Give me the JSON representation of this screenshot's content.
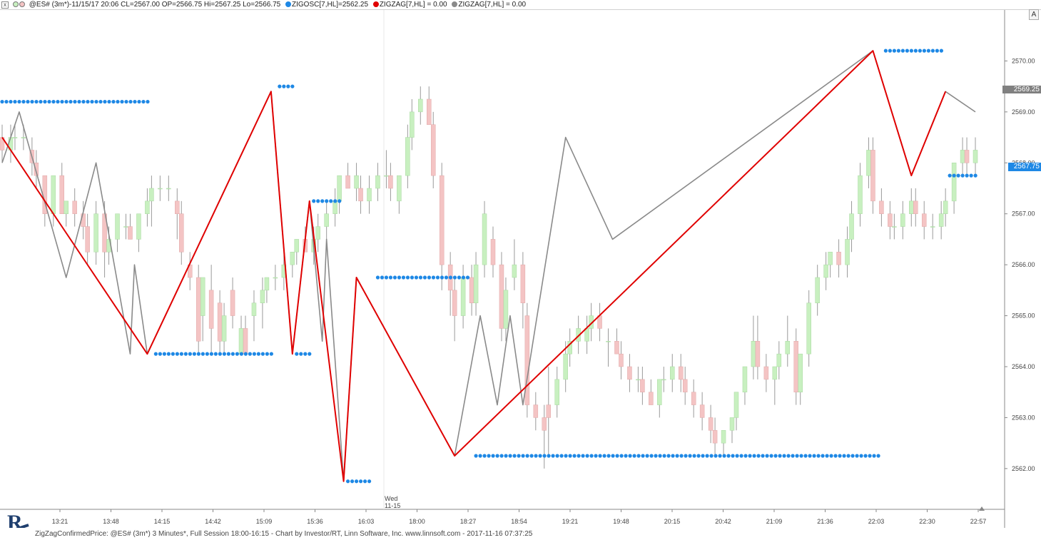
{
  "header": {
    "close_glyph": "x",
    "series_label": "@ES# (3m*)-11/15/17 20:06 CL=2567.00 OP=2566.75 Hi=2567.25 Lo=2566.75",
    "ind1_label": "ZIGOSC[7,HL]=2562.25",
    "ind2_label": "ZIGZAG[7,HL] = 0.00",
    "ind3_label": "ZIGZAG[7,HL] = 0.00",
    "a_button": "A"
  },
  "colors": {
    "up_candle": "#c8f0c0",
    "down_candle": "#f4c4c4",
    "wick": "#9a9a9a",
    "zigzag_red": "#e00000",
    "zigzag_gray": "#8a8a8a",
    "dots_blue": "#1e88e5",
    "axis_text": "#444444"
  },
  "price_badges": {
    "last_close": "2569.25",
    "zigosc_level": "2567.75"
  },
  "footer": {
    "text": "ZigZagConfirmedPrice: @ES# (3m*) 3 Minutes*, Full Session 18:00-16:15 - Chart by Investor/RT, Linn Software, Inc. www.linnsoft.com - 2017-11-16 07:37:25",
    "logo_letter": "R"
  },
  "chart_data": {
    "type": "candlestick",
    "symbol": "@ES#",
    "interval": "3 Minutes",
    "ylim": [
      2561.2,
      2571.0
    ],
    "y_ticks": [
      "2562.00",
      "2563.00",
      "2564.00",
      "2565.00",
      "2566.00",
      "2567.00",
      "2568.00",
      "2569.00",
      "2570.00"
    ],
    "x_ticks": [
      "13:21",
      "13:48",
      "14:15",
      "14:42",
      "15:09",
      "15:36",
      "16:03",
      "18:00",
      "18:27",
      "18:54",
      "19:21",
      "19:48",
      "20:15",
      "20:42",
      "21:09",
      "21:36",
      "22:03",
      "22:30",
      "22:57"
    ],
    "session_break_label": [
      "Wed",
      "11-15"
    ],
    "bar_count": 151,
    "candles_ohlc": [
      [
        2568.5,
        2568.75,
        2568.0,
        2568.25
      ],
      [
        2568.25,
        2568.75,
        2568.0,
        2568.5
      ],
      [
        2568.5,
        2568.75,
        2568.25,
        2568.5
      ],
      [
        2568.5,
        2568.75,
        2568.25,
        2568.5
      ],
      [
        2568.25,
        2568.5,
        2567.75,
        2568.0
      ],
      [
        2568.0,
        2568.25,
        2567.5,
        2567.75
      ],
      [
        2567.75,
        2567.75,
        2566.75,
        2567.0
      ],
      [
        2567.0,
        2567.75,
        2566.75,
        2567.75
      ],
      [
        2567.75,
        2568.0,
        2567.0,
        2567.0
      ],
      [
        2567.0,
        2567.25,
        2566.75,
        2567.25
      ],
      [
        2567.25,
        2567.5,
        2566.75,
        2567.0
      ],
      [
        2567.0,
        2567.25,
        2566.5,
        2566.75
      ],
      [
        2566.75,
        2567.0,
        2566.0,
        2566.25
      ],
      [
        2566.25,
        2567.25,
        2566.0,
        2567.0
      ],
      [
        2567.0,
        2567.25,
        2565.75,
        2566.25
      ],
      [
        2566.25,
        2566.75,
        2566.0,
        2566.5
      ],
      [
        2566.5,
        2567.0,
        2566.25,
        2567.0
      ],
      [
        2566.75,
        2567.0,
        2566.5,
        2566.75
      ],
      [
        2566.75,
        2567.0,
        2566.5,
        2566.5
      ],
      [
        2566.5,
        2567.0,
        2566.25,
        2567.0
      ],
      [
        2567.0,
        2567.5,
        2566.75,
        2567.25
      ],
      [
        2567.25,
        2567.75,
        2566.75,
        2567.5
      ],
      [
        2567.5,
        2567.75,
        2567.25,
        2567.5
      ],
      [
        2567.5,
        2567.75,
        2567.25,
        2567.5
      ],
      [
        2567.25,
        2567.5,
        2566.5,
        2567.0
      ],
      [
        2567.0,
        2567.25,
        2566.0,
        2566.25
      ],
      [
        2566.0,
        2566.25,
        2565.5,
        2565.75
      ],
      [
        2565.75,
        2566.0,
        2564.25,
        2564.5
      ],
      [
        2565.0,
        2565.75,
        2564.5,
        2565.75
      ],
      [
        2565.5,
        2566.0,
        2564.25,
        2564.75
      ],
      [
        2565.25,
        2565.5,
        2564.25,
        2564.5
      ],
      [
        2564.5,
        2565.25,
        2564.25,
        2565.0
      ],
      [
        2565.5,
        2565.75,
        2564.75,
        2565.0
      ],
      [
        2564.25,
        2565.0,
        2564.25,
        2564.75
      ],
      [
        2564.75,
        2565.0,
        2564.25,
        2564.25
      ],
      [
        2565.0,
        2565.5,
        2564.5,
        2565.25
      ],
      [
        2565.25,
        2565.75,
        2564.75,
        2565.5
      ],
      [
        2565.5,
        2565.75,
        2565.25,
        2565.75
      ],
      [
        2565.75,
        2566.0,
        2565.5,
        2565.75
      ],
      [
        2565.75,
        2566.25,
        2565.5,
        2566.0
      ],
      [
        2566.0,
        2566.25,
        2565.75,
        2566.25
      ],
      [
        2566.25,
        2566.5,
        2566.0,
        2566.5
      ],
      [
        2566.5,
        2566.75,
        2566.25,
        2566.25
      ],
      [
        2566.25,
        2566.75,
        2566.0,
        2566.5
      ],
      [
        2566.5,
        2567.0,
        2566.25,
        2566.75
      ],
      [
        2566.75,
        2567.25,
        2566.5,
        2567.0
      ],
      [
        2567.0,
        2567.5,
        2566.75,
        2567.25
      ],
      [
        2567.25,
        2567.75,
        2567.0,
        2567.75
      ],
      [
        2567.75,
        2568.0,
        2567.5,
        2567.5
      ],
      [
        2567.5,
        2568.0,
        2567.25,
        2567.75
      ],
      [
        2567.5,
        2567.75,
        2567.0,
        2567.25
      ],
      [
        2567.25,
        2567.75,
        2567.0,
        2567.5
      ],
      [
        2567.5,
        2568.0,
        2567.25,
        2567.75
      ],
      [
        2567.75,
        2568.25,
        2567.5,
        2567.75
      ],
      [
        2567.75,
        2568.0,
        2567.25,
        2567.5
      ],
      [
        2567.25,
        2567.75,
        2567.0,
        2567.75
      ],
      [
        2567.75,
        2568.75,
        2567.5,
        2568.5
      ],
      [
        2568.5,
        2569.25,
        2568.25,
        2569.0
      ],
      [
        2569.0,
        2569.5,
        2568.75,
        2569.25
      ],
      [
        2569.25,
        2569.5,
        2568.75,
        2568.75
      ],
      [
        2568.75,
        2569.0,
        2567.5,
        2567.75
      ],
      [
        2567.75,
        2568.0,
        2565.5,
        2566.0
      ],
      [
        2566.0,
        2566.25,
        2565.0,
        2565.5
      ],
      [
        2565.5,
        2565.75,
        2564.5,
        2565.0
      ],
      [
        2565.0,
        2566.0,
        2564.75,
        2565.75
      ],
      [
        2565.75,
        2566.0,
        2565.0,
        2565.25
      ],
      [
        2565.25,
        2566.25,
        2565.0,
        2566.0
      ],
      [
        2566.0,
        2567.25,
        2565.75,
        2567.0
      ],
      [
        2566.5,
        2566.75,
        2565.75,
        2566.0
      ],
      [
        2566.0,
        2566.25,
        2564.5,
        2564.75
      ],
      [
        2564.75,
        2565.75,
        2564.5,
        2565.5
      ],
      [
        2565.75,
        2566.5,
        2565.5,
        2566.0
      ],
      [
        2566.0,
        2566.25,
        2564.75,
        2565.25
      ],
      [
        2565.0,
        2565.25,
        2563.0,
        2563.25
      ],
      [
        2563.25,
        2563.5,
        2562.75,
        2563.0
      ],
      [
        2563.0,
        2563.25,
        2562.0,
        2562.75
      ],
      [
        2563.25,
        2564.0,
        2562.25,
        2563.0
      ],
      [
        2563.25,
        2564.0,
        2563.0,
        2563.75
      ],
      [
        2563.75,
        2564.5,
        2563.5,
        2564.25
      ],
      [
        2564.25,
        2564.75,
        2564.0,
        2564.5
      ],
      [
        2564.5,
        2565.0,
        2564.25,
        2564.75
      ],
      [
        2564.5,
        2565.0,
        2564.25,
        2564.75
      ],
      [
        2564.75,
        2565.25,
        2564.5,
        2565.0
      ],
      [
        2565.0,
        2565.25,
        2564.5,
        2564.75
      ],
      [
        2564.5,
        2564.75,
        2564.0,
        2564.5
      ],
      [
        2564.5,
        2564.75,
        2564.25,
        2564.25
      ],
      [
        2564.25,
        2564.5,
        2563.75,
        2564.0
      ],
      [
        2564.0,
        2564.25,
        2563.5,
        2563.75
      ],
      [
        2563.75,
        2564.0,
        2563.5,
        2563.75
      ],
      [
        2563.75,
        2564.0,
        2563.25,
        2563.5
      ],
      [
        2563.5,
        2563.75,
        2563.25,
        2563.25
      ],
      [
        2563.25,
        2563.75,
        2563.0,
        2563.75
      ],
      [
        2563.75,
        2564.0,
        2563.5,
        2563.75
      ],
      [
        2563.75,
        2564.25,
        2563.5,
        2564.0
      ],
      [
        2564.0,
        2564.25,
        2563.5,
        2563.75
      ],
      [
        2563.75,
        2564.0,
        2563.25,
        2563.5
      ],
      [
        2563.5,
        2563.75,
        2563.0,
        2563.25
      ],
      [
        2563.25,
        2563.5,
        2562.75,
        2563.0
      ],
      [
        2563.0,
        2563.25,
        2562.5,
        2562.75
      ],
      [
        2562.75,
        2563.0,
        2562.25,
        2562.5
      ],
      [
        2562.5,
        2562.75,
        2562.25,
        2562.75
      ],
      [
        2562.75,
        2563.0,
        2562.5,
        2563.0
      ],
      [
        2563.0,
        2563.5,
        2562.75,
        2563.5
      ],
      [
        2563.5,
        2564.0,
        2563.25,
        2564.0
      ],
      [
        2564.0,
        2565.0,
        2563.75,
        2564.5
      ],
      [
        2564.5,
        2565.0,
        2563.75,
        2564.0
      ],
      [
        2564.0,
        2564.25,
        2563.5,
        2563.75
      ],
      [
        2563.75,
        2564.0,
        2563.25,
        2564.0
      ],
      [
        2564.0,
        2564.5,
        2563.75,
        2564.25
      ],
      [
        2564.25,
        2565.0,
        2564.0,
        2564.5
      ],
      [
        2564.5,
        2564.75,
        2563.25,
        2563.5
      ],
      [
        2563.5,
        2564.25,
        2563.25,
        2564.25
      ],
      [
        2564.25,
        2565.5,
        2564.0,
        2565.25
      ],
      [
        2565.25,
        2566.0,
        2565.0,
        2565.75
      ],
      [
        2565.75,
        2566.25,
        2565.5,
        2566.0
      ],
      [
        2566.0,
        2566.25,
        2565.75,
        2566.25
      ],
      [
        2566.25,
        2566.5,
        2565.75,
        2566.0
      ],
      [
        2566.0,
        2566.75,
        2565.75,
        2566.5
      ],
      [
        2566.5,
        2567.25,
        2566.25,
        2567.0
      ],
      [
        2567.0,
        2568.0,
        2566.75,
        2567.75
      ],
      [
        2567.75,
        2568.5,
        2567.5,
        2568.25
      ],
      [
        2568.25,
        2568.5,
        2567.0,
        2567.25
      ],
      [
        2567.25,
        2567.5,
        2566.75,
        2567.0
      ],
      [
        2567.0,
        2567.25,
        2566.5,
        2566.75
      ],
      [
        2566.75,
        2567.0,
        2566.5,
        2566.75
      ],
      [
        2566.75,
        2567.25,
        2566.5,
        2567.0
      ],
      [
        2567.0,
        2567.5,
        2566.75,
        2567.25
      ],
      [
        2567.25,
        2567.5,
        2566.75,
        2567.0
      ],
      [
        2567.0,
        2567.25,
        2566.5,
        2566.75
      ],
      [
        2566.75,
        2567.0,
        2566.5,
        2566.75
      ],
      [
        2566.75,
        2567.25,
        2566.5,
        2567.0
      ],
      [
        2567.0,
        2567.5,
        2566.75,
        2567.25
      ],
      [
        2567.25,
        2568.0,
        2567.0,
        2568.0
      ],
      [
        2568.0,
        2568.5,
        2567.75,
        2568.25
      ],
      [
        2568.25,
        2568.5,
        2567.75,
        2568.0
      ],
      [
        2568.0,
        2568.5,
        2567.75,
        2568.25
      ]
    ],
    "zigzag_red_pivots": [
      {
        "bar": 0,
        "price": 2568.5
      },
      {
        "bar": 34,
        "price": 2564.25
      },
      {
        "bar": 63,
        "price": 2569.4
      },
      {
        "bar": 68,
        "price": 2564.25
      },
      {
        "bar": 72,
        "price": 2567.25
      },
      {
        "bar": 80,
        "price": 2561.75
      },
      {
        "bar": 83,
        "price": 2565.75
      },
      {
        "bar": 106,
        "price": 2562.25
      },
      {
        "bar": 204,
        "price": 2570.2
      },
      {
        "bar": 213,
        "price": 2567.75
      },
      {
        "bar": 221,
        "price": 2569.4
      }
    ],
    "zigzag_gray_pivots": [
      {
        "bar": 0,
        "price": 2568.0
      },
      {
        "bar": 4,
        "price": 2569.0
      },
      {
        "bar": 15,
        "price": 2565.75
      },
      {
        "bar": 22,
        "price": 2568.0
      },
      {
        "bar": 30,
        "price": 2564.25
      },
      {
        "bar": 31,
        "price": 2566.0
      },
      {
        "bar": 34,
        "price": 2564.25
      },
      {
        "bar": 63,
        "price": 2569.4
      },
      {
        "bar": 68,
        "price": 2564.25
      },
      {
        "bar": 72,
        "price": 2567.25
      },
      {
        "bar": 75,
        "price": 2564.5
      },
      {
        "bar": 76,
        "price": 2566.5
      },
      {
        "bar": 80,
        "price": 2561.75
      },
      {
        "bar": 83,
        "price": 2565.75
      },
      {
        "bar": 106,
        "price": 2562.25
      },
      {
        "bar": 112,
        "price": 2565.0
      },
      {
        "bar": 116,
        "price": 2563.25
      },
      {
        "bar": 119,
        "price": 2565.0
      },
      {
        "bar": 122,
        "price": 2563.25
      },
      {
        "bar": 132,
        "price": 2568.5
      },
      {
        "bar": 143,
        "price": 2566.5
      },
      {
        "bar": 204,
        "price": 2570.2
      },
      {
        "bar": 213,
        "price": 2567.75
      },
      {
        "bar": 221,
        "price": 2569.4
      },
      {
        "bar": 228,
        "price": 2569.0
      }
    ],
    "zigosc_levels": [
      {
        "from_bar": 0,
        "to_bar": 35,
        "price": 2569.2
      },
      {
        "from_bar": 65,
        "to_bar": 68,
        "price": 2569.5
      },
      {
        "from_bar": 36,
        "to_bar": 64,
        "price": 2564.25
      },
      {
        "from_bar": 69,
        "to_bar": 72,
        "price": 2564.25
      },
      {
        "from_bar": 73,
        "to_bar": 80,
        "price": 2567.25
      },
      {
        "from_bar": 81,
        "to_bar": 87,
        "price": 2561.75
      },
      {
        "from_bar": 88,
        "to_bar": 110,
        "price": 2565.75
      },
      {
        "from_bar": 111,
        "to_bar": 206,
        "price": 2562.25
      },
      {
        "from_bar": 207,
        "to_bar": 221,
        "price": 2570.2
      },
      {
        "from_bar": 222,
        "to_bar": 229,
        "price": 2567.75
      }
    ]
  }
}
